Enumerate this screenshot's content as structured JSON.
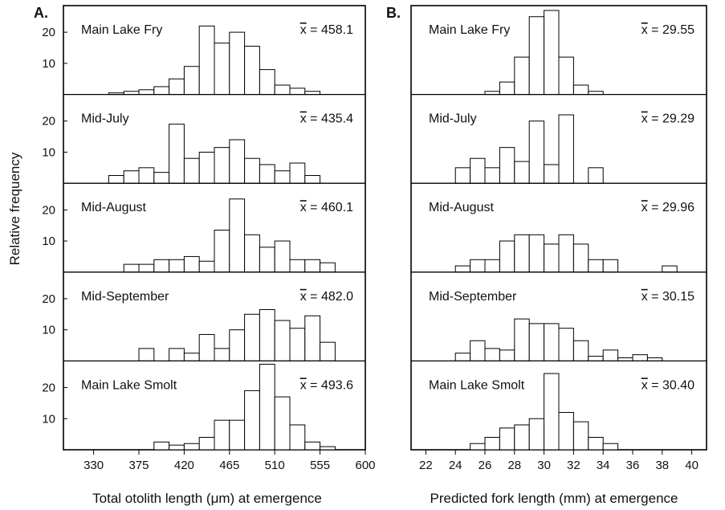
{
  "figure": {
    "ylabel": "Relative frequency",
    "panels": [
      {
        "letter": "A.",
        "xlabel": "Total otolith length (μm) at emergence"
      },
      {
        "letter": "B.",
        "xlabel": "Predicted fork length (mm) at emergence"
      }
    ]
  },
  "chart_data": [
    {
      "type": "bar",
      "panel": "A.",
      "xlabel": "Total otolith length (μm) at emergence",
      "ylabel": "Relative frequency",
      "xlim": [
        300,
        600
      ],
      "xticks": [
        330,
        375,
        420,
        465,
        510,
        555,
        600
      ],
      "yticks": [
        10,
        20
      ],
      "ylim_per_row": [
        0,
        27
      ],
      "bin_width": 15,
      "bin_starts": [
        345,
        360,
        375,
        390,
        405,
        420,
        435,
        450,
        465,
        480,
        495,
        510,
        525,
        540,
        555
      ],
      "series": [
        {
          "name": "Main Lake Fry",
          "mean": "458.1",
          "values": [
            0.5,
            1,
            1.5,
            2.5,
            5,
            9,
            22,
            16.5,
            20,
            15.5,
            8,
            3,
            2,
            1,
            0
          ]
        },
        {
          "name": "Mid-July",
          "mean": "435.4",
          "values": [
            2.5,
            4,
            5,
            3.5,
            19,
            8,
            10,
            11.5,
            14,
            8,
            6,
            4,
            6.5,
            2.5,
            0
          ]
        },
        {
          "name": "Mid-August",
          "mean": "460.1",
          "values": [
            0,
            2.5,
            2.5,
            4,
            4,
            5,
            3.5,
            13.5,
            23.5,
            12,
            8,
            10,
            4,
            4,
            3
          ]
        },
        {
          "name": "Mid-September",
          "mean": "482.0",
          "values": [
            0,
            0,
            4,
            0,
            4,
            2.5,
            8.5,
            4,
            10,
            15,
            16.5,
            13,
            10.5,
            14.5,
            6
          ]
        },
        {
          "name": "Main Lake Smolt",
          "mean": "493.6",
          "values": [
            0,
            0,
            0,
            2.5,
            1.5,
            2,
            4,
            9.5,
            9.5,
            19,
            27.5,
            17,
            8,
            2.5,
            1
          ]
        }
      ]
    },
    {
      "type": "bar",
      "panel": "B.",
      "xlabel": "Predicted fork length (mm) at emergence",
      "ylabel": "Relative frequency",
      "xlim": [
        21,
        41
      ],
      "xticks": [
        22,
        24,
        26,
        28,
        30,
        32,
        34,
        36,
        38,
        40
      ],
      "ylim_per_row": [
        0,
        27
      ],
      "bin_width": 1,
      "bin_starts": [
        24,
        25,
        26,
        27,
        28,
        29,
        30,
        31,
        32,
        33,
        34,
        35,
        36,
        37,
        38
      ],
      "series": [
        {
          "name": "Main Lake Fry",
          "mean": "29.55",
          "values": [
            0,
            0,
            1,
            4,
            12,
            25,
            27,
            12,
            3,
            1,
            0,
            0,
            0,
            0,
            0
          ]
        },
        {
          "name": "Mid-July",
          "mean": "29.29",
          "values": [
            5,
            8,
            5,
            11.5,
            7,
            20,
            6,
            22,
            0,
            5,
            0,
            0,
            0,
            0,
            0
          ]
        },
        {
          "name": "Mid-August",
          "mean": "29.96",
          "values": [
            2,
            4,
            4,
            10,
            12,
            12,
            9,
            12,
            9,
            4,
            4,
            0,
            0,
            0,
            2
          ]
        },
        {
          "name": "Mid-September",
          "mean": "30.15",
          "values": [
            2.5,
            6.5,
            4,
            3.5,
            13.5,
            12,
            12,
            10.5,
            6.5,
            1.5,
            3.5,
            1,
            2,
            1,
            0
          ]
        },
        {
          "name": "Main Lake Smolt",
          "mean": "30.40",
          "values": [
            0,
            2,
            4,
            7,
            8,
            10,
            24.5,
            12,
            9,
            4,
            2,
            0,
            0,
            0,
            0
          ]
        }
      ]
    }
  ]
}
